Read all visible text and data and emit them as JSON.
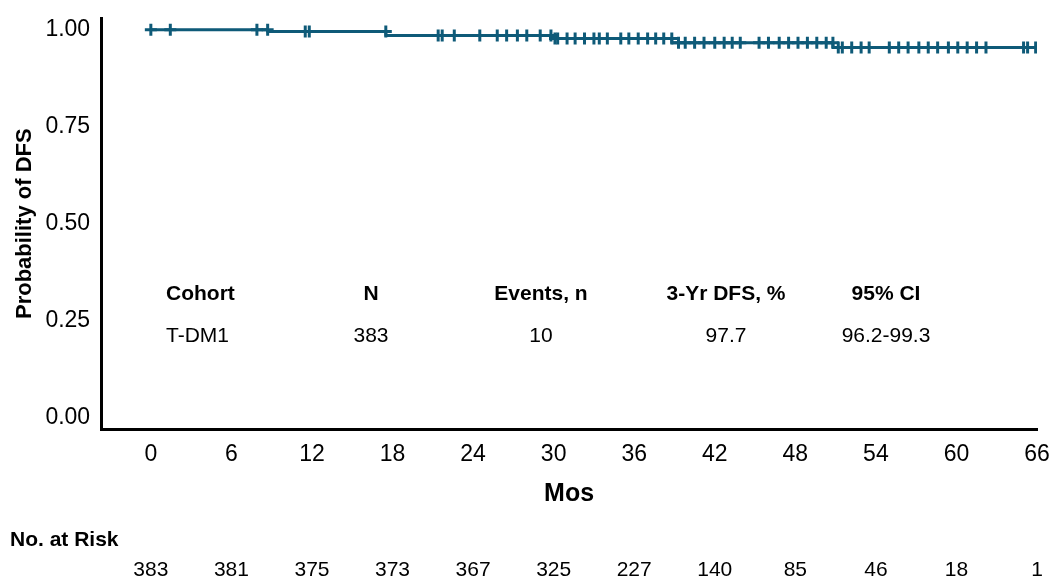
{
  "chart_data": {
    "type": "step",
    "xlabel": "Mos",
    "ylabel": "Probability of DFS",
    "x": [
      0,
      1.45,
      7.9,
      8.7,
      11.5,
      11.8,
      17.5,
      21.4,
      21.7,
      22.6,
      24.5,
      25.8,
      26.5,
      27.3,
      28,
      29,
      29.8,
      30.1,
      30.3,
      31,
      31.6,
      32.3,
      33,
      33.4,
      34,
      35,
      35.6,
      36.3,
      37,
      37.6,
      38.2,
      38.8,
      39.3,
      39.8,
      40.5,
      41.2,
      42,
      42.7,
      43.3,
      43.9,
      45.3,
      46,
      46.8,
      47.5,
      48.2,
      48.9,
      49.6,
      50.3,
      50.8,
      51.2,
      51.5,
      52.2,
      52.9,
      53.5,
      55,
      55.7,
      56.4,
      57.2,
      57.9,
      58.6,
      59.4,
      60.1,
      60.8,
      61.5,
      62.2,
      65,
      65.3,
      65.9
    ],
    "series": [
      {
        "color": "#0e5a78",
        "values": [
          1,
          1,
          1,
          1,
          0.995,
          0.995,
          0.995,
          0.985,
          0.985,
          0.985,
          0.985,
          0.985,
          0.985,
          0.985,
          0.985,
          0.985,
          0.985,
          0.977,
          0.977,
          0.977,
          0.977,
          0.977,
          0.977,
          0.977,
          0.977,
          0.977,
          0.977,
          0.977,
          0.977,
          0.977,
          0.977,
          0.977,
          0.966,
          0.966,
          0.966,
          0.966,
          0.966,
          0.966,
          0.966,
          0.966,
          0.966,
          0.966,
          0.966,
          0.966,
          0.966,
          0.966,
          0.966,
          0.966,
          0.966,
          0.954,
          0.954,
          0.954,
          0.954,
          0.954,
          0.954,
          0.954,
          0.954,
          0.954,
          0.954,
          0.954,
          0.954,
          0.954,
          0.954,
          0.954,
          0.954,
          0.954,
          0.954,
          0.954
        ]
      }
    ],
    "xlim": [
      -3.7,
      66
    ],
    "xticks": [
      0,
      6,
      12,
      18,
      24,
      30,
      36,
      42,
      48,
      54,
      60,
      66
    ],
    "ylim": [
      -0.03,
      1.03
    ],
    "yticks": [
      {
        "value": 0,
        "label": "0.00"
      },
      {
        "value": 0.25,
        "label": "0.25"
      },
      {
        "value": 0.5,
        "label": "0.50"
      },
      {
        "value": 0.75,
        "label": "0.75"
      },
      {
        "value": 1,
        "label": "1.00"
      }
    ],
    "grid": false,
    "legend": false,
    "marker": "cross",
    "line_style": "solid",
    "annotations": [
      "Cohort",
      "N",
      "Events, n",
      "3-Yr DFS, %",
      "95% CI",
      "T-DM1",
      "383",
      "10",
      "97.7",
      "96.2-99.3",
      "No. at Risk",
      "383",
      "381",
      "375",
      "373",
      "367",
      "325",
      "227",
      "140",
      "85",
      "46",
      "18",
      "1"
    ]
  }
}
